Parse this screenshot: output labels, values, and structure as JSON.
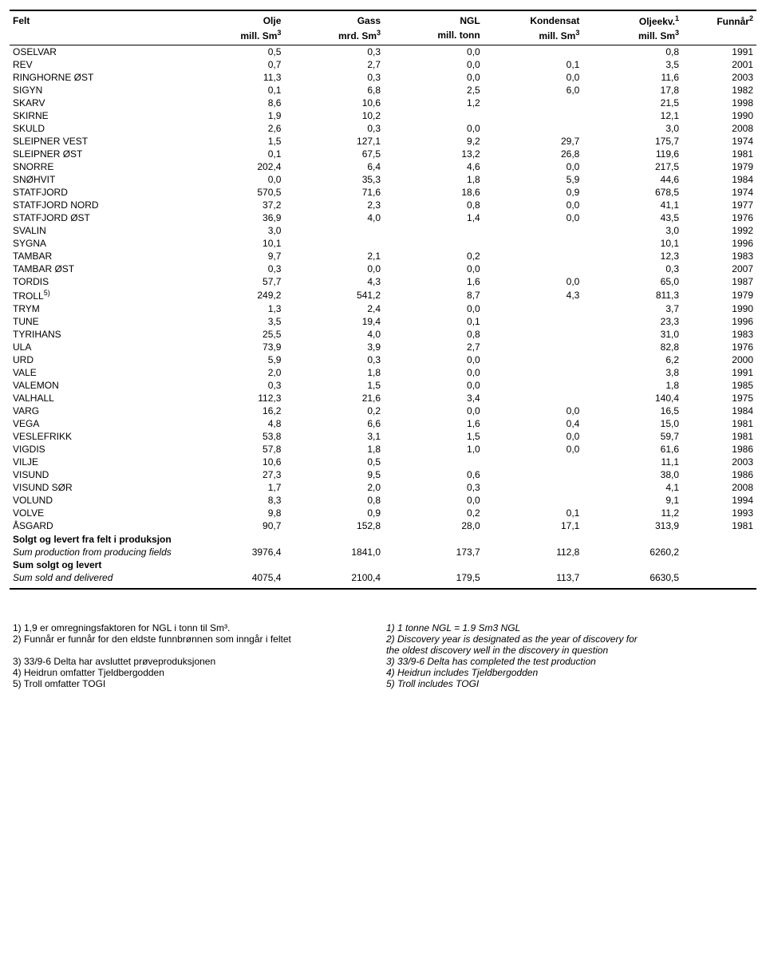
{
  "header": {
    "felt": "Felt",
    "olje": "Olje",
    "gass": "Gass",
    "ngl": "NGL",
    "kondensat": "Kondensat",
    "oljeekv": "Oljeekv.",
    "oljeekv_sup": "1",
    "funnaar": "Funnår",
    "funnaar_sup": "2",
    "olje_unit": "mill. Sm",
    "gass_unit": "mrd. Sm",
    "ngl_unit": "mill. tonn",
    "kondensat_unit": "mill. Sm",
    "oljeekv_unit": "mill. Sm",
    "sup3": "3"
  },
  "rows": [
    {
      "felt": "OSELVAR",
      "olje": "0,5",
      "gass": "0,3",
      "ngl": "0,0",
      "kond": "",
      "ekv": "0,8",
      "aar": "1991"
    },
    {
      "felt": "REV",
      "olje": "0,7",
      "gass": "2,7",
      "ngl": "0,0",
      "kond": "0,1",
      "ekv": "3,5",
      "aar": "2001"
    },
    {
      "felt": "RINGHORNE ØST",
      "olje": "11,3",
      "gass": "0,3",
      "ngl": "0,0",
      "kond": "0,0",
      "ekv": "11,6",
      "aar": "2003"
    },
    {
      "felt": "SIGYN",
      "olje": "0,1",
      "gass": "6,8",
      "ngl": "2,5",
      "kond": "6,0",
      "ekv": "17,8",
      "aar": "1982"
    },
    {
      "felt": "SKARV",
      "olje": "8,6",
      "gass": "10,6",
      "ngl": "1,2",
      "kond": "",
      "ekv": "21,5",
      "aar": "1998"
    },
    {
      "felt": "SKIRNE",
      "olje": "1,9",
      "gass": "10,2",
      "ngl": "",
      "kond": "",
      "ekv": "12,1",
      "aar": "1990"
    },
    {
      "felt": "SKULD",
      "olje": "2,6",
      "gass": "0,3",
      "ngl": "0,0",
      "kond": "",
      "ekv": "3,0",
      "aar": "2008"
    },
    {
      "felt": "SLEIPNER VEST",
      "olje": "1,5",
      "gass": "127,1",
      "ngl": "9,2",
      "kond": "29,7",
      "ekv": "175,7",
      "aar": "1974"
    },
    {
      "felt": "SLEIPNER ØST",
      "olje": "0,1",
      "gass": "67,5",
      "ngl": "13,2",
      "kond": "26,8",
      "ekv": "119,6",
      "aar": "1981"
    },
    {
      "felt": "SNORRE",
      "olje": "202,4",
      "gass": "6,4",
      "ngl": "4,6",
      "kond": "0,0",
      "ekv": "217,5",
      "aar": "1979"
    },
    {
      "felt": "SNØHVIT",
      "olje": "0,0",
      "gass": "35,3",
      "ngl": "1,8",
      "kond": "5,9",
      "ekv": "44,6",
      "aar": "1984"
    },
    {
      "felt": "STATFJORD",
      "olje": "570,5",
      "gass": "71,6",
      "ngl": "18,6",
      "kond": "0,9",
      "ekv": "678,5",
      "aar": "1974"
    },
    {
      "felt": "STATFJORD NORD",
      "olje": "37,2",
      "gass": "2,3",
      "ngl": "0,8",
      "kond": "0,0",
      "ekv": "41,1",
      "aar": "1977"
    },
    {
      "felt": "STATFJORD ØST",
      "olje": "36,9",
      "gass": "4,0",
      "ngl": "1,4",
      "kond": "0,0",
      "ekv": "43,5",
      "aar": "1976"
    },
    {
      "felt": "SVALIN",
      "olje": "3,0",
      "gass": "",
      "ngl": "",
      "kond": "",
      "ekv": "3,0",
      "aar": "1992"
    },
    {
      "felt": "SYGNA",
      "olje": "10,1",
      "gass": "",
      "ngl": "",
      "kond": "",
      "ekv": "10,1",
      "aar": "1996"
    },
    {
      "felt": "TAMBAR",
      "olje": "9,7",
      "gass": "2,1",
      "ngl": "0,2",
      "kond": "",
      "ekv": "12,3",
      "aar": "1983"
    },
    {
      "felt": "TAMBAR ØST",
      "olje": "0,3",
      "gass": "0,0",
      "ngl": "0,0",
      "kond": "",
      "ekv": "0,3",
      "aar": "2007"
    },
    {
      "felt": "TORDIS",
      "olje": "57,7",
      "gass": "4,3",
      "ngl": "1,6",
      "kond": "0,0",
      "ekv": "65,0",
      "aar": "1987"
    },
    {
      "felt": "TROLL",
      "sup": "5)",
      "olje": "249,2",
      "gass": "541,2",
      "ngl": "8,7",
      "kond": "4,3",
      "ekv": "811,3",
      "aar": "1979"
    },
    {
      "felt": "TRYM",
      "olje": "1,3",
      "gass": "2,4",
      "ngl": "0,0",
      "kond": "",
      "ekv": "3,7",
      "aar": "1990"
    },
    {
      "felt": "TUNE",
      "olje": "3,5",
      "gass": "19,4",
      "ngl": "0,1",
      "kond": "",
      "ekv": "23,3",
      "aar": "1996"
    },
    {
      "felt": "TYRIHANS",
      "olje": "25,5",
      "gass": "4,0",
      "ngl": "0,8",
      "kond": "",
      "ekv": "31,0",
      "aar": "1983"
    },
    {
      "felt": "ULA",
      "olje": "73,9",
      "gass": "3,9",
      "ngl": "2,7",
      "kond": "",
      "ekv": "82,8",
      "aar": "1976"
    },
    {
      "felt": "URD",
      "olje": "5,9",
      "gass": "0,3",
      "ngl": "0,0",
      "kond": "",
      "ekv": "6,2",
      "aar": "2000"
    },
    {
      "felt": "VALE",
      "olje": "2,0",
      "gass": "1,8",
      "ngl": "0,0",
      "kond": "",
      "ekv": "3,8",
      "aar": "1991"
    },
    {
      "felt": "VALEMON",
      "olje": "0,3",
      "gass": "1,5",
      "ngl": "0,0",
      "kond": "",
      "ekv": "1,8",
      "aar": "1985"
    },
    {
      "felt": "VALHALL",
      "olje": "112,3",
      "gass": "21,6",
      "ngl": "3,4",
      "kond": "",
      "ekv": "140,4",
      "aar": "1975"
    },
    {
      "felt": "VARG",
      "olje": "16,2",
      "gass": "0,2",
      "ngl": "0,0",
      "kond": "0,0",
      "ekv": "16,5",
      "aar": "1984"
    },
    {
      "felt": "VEGA",
      "olje": "4,8",
      "gass": "6,6",
      "ngl": "1,6",
      "kond": "0,4",
      "ekv": "15,0",
      "aar": "1981"
    },
    {
      "felt": "VESLEFRIKK",
      "olje": "53,8",
      "gass": "3,1",
      "ngl": "1,5",
      "kond": "0,0",
      "ekv": "59,7",
      "aar": "1981"
    },
    {
      "felt": "VIGDIS",
      "olje": "57,8",
      "gass": "1,8",
      "ngl": "1,0",
      "kond": "0,0",
      "ekv": "61,6",
      "aar": "1986"
    },
    {
      "felt": "VILJE",
      "olje": "10,6",
      "gass": "0,5",
      "ngl": "",
      "kond": "",
      "ekv": "11,1",
      "aar": "2003"
    },
    {
      "felt": "VISUND",
      "olje": "27,3",
      "gass": "9,5",
      "ngl": "0,6",
      "kond": "",
      "ekv": "38,0",
      "aar": "1986"
    },
    {
      "felt": "VISUND SØR",
      "olje": "1,7",
      "gass": "2,0",
      "ngl": "0,3",
      "kond": "",
      "ekv": "4,1",
      "aar": "2008"
    },
    {
      "felt": "VOLUND",
      "olje": "8,3",
      "gass": "0,8",
      "ngl": "0,0",
      "kond": "",
      "ekv": "9,1",
      "aar": "1994"
    },
    {
      "felt": "VOLVE",
      "olje": "9,8",
      "gass": "0,9",
      "ngl": "0,2",
      "kond": "0,1",
      "ekv": "11,2",
      "aar": "1993"
    },
    {
      "felt": "ÅSGARD",
      "olje": "90,7",
      "gass": "152,8",
      "ngl": "28,0",
      "kond": "17,1",
      "ekv": "313,9",
      "aar": "1981"
    }
  ],
  "sums": {
    "solgt_header": "Solgt og levert fra felt i produksjon",
    "sum_prod_sub": "Sum production from producing fields",
    "sum_prod": {
      "olje": "3976,4",
      "gass": "1841,0",
      "ngl": "173,7",
      "kond": "112,8",
      "ekv": "6260,2"
    },
    "sum_solgt_header": "Sum solgt og levert",
    "sum_solgt_sub": "Sum sold and delivered",
    "sum_solgt": {
      "olje": "4075,4",
      "gass": "2100,4",
      "ngl": "179,5",
      "kond": "113,7",
      "ekv": "6630,5"
    }
  },
  "footnotes": {
    "left": [
      "1) 1,9 er omregningsfaktoren for NGL i tonn til Sm³.",
      "2) Funnår er funnår for den eldste funnbrønnen som inngår i feltet",
      "",
      "3) 33/9-6 Delta har avsluttet prøveproduksjonen",
      "4) Heidrun omfatter Tjeldbergodden",
      "5) Troll omfatter TOGI"
    ],
    "right": [
      "1) 1 tonne NGL = 1.9 Sm3 NGL",
      "2) Discovery year is designated as the year of discovery for",
      "    the oldest discovery well in the discovery in question",
      "3) 33/9-6 Delta has completed the test production",
      "4) Heidrun includes Tjeldbergodden",
      "5) Troll includes TOGI"
    ]
  }
}
